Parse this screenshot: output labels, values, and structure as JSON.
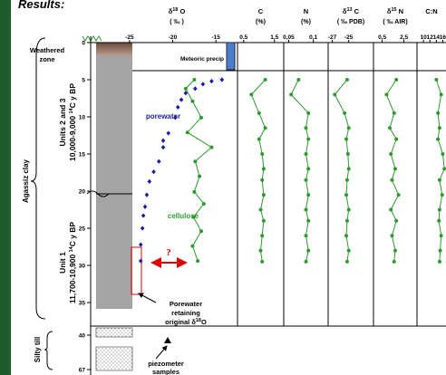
{
  "chart_data": {
    "type": "depth-profile",
    "title": "Results:",
    "depth_ticks": [
      0,
      5,
      10,
      15,
      20,
      25,
      30,
      35,
      40,
      67
    ],
    "sample_depths": [
      5,
      7,
      9.5,
      11.5,
      13,
      15,
      17,
      18.5,
      20.5,
      22.5,
      24,
      26,
      28,
      29.5
    ],
    "panels": [
      {
        "header": [
          {
            "text": "δ"
          },
          {
            "text": "18",
            "sup": true
          },
          {
            "text": " O"
          }
        ],
        "unit": "( ‰ )",
        "xlim": [
          -29.5,
          -12.5
        ],
        "xticks": [
          -25,
          -20,
          -15
        ],
        "series": [
          {
            "name": "porewater",
            "color": "#1c1c9c",
            "marker": "diamond",
            "line": false,
            "depths": [
              5,
              5.2,
              5.6,
              6.2,
              6.8,
              7.7,
              8.7,
              10.1,
              12.2,
              13.2,
              14.1,
              16,
              17.4,
              18.7,
              20.5,
              22.1,
              23.3,
              25,
              27.2,
              29.4
            ],
            "values": [
              -14.3,
              -15.5,
              -16.5,
              -17.4,
              -18.5,
              -19,
              -19.4,
              -19.7,
              -20.5,
              -21.1,
              -21.1,
              -21.6,
              -22.2,
              -22.7,
              -23,
              -23.2,
              -23.4,
              -23.5,
              -23.7,
              -23.7
            ]
          },
          {
            "name": "cellulose",
            "color": "#2e9a2e",
            "marker": "circle",
            "line": true,
            "depths": [
              5,
              6.2,
              7.9,
              10.1,
              12.1,
              14.1,
              16,
              18,
              20.1,
              21.7,
              23.5,
              25.4,
              27.4,
              29.4
            ],
            "values": [
              -17.5,
              -18.5,
              -17.7,
              -16.7,
              -18.3,
              -15.5,
              -17.4,
              -16.9,
              -17.5,
              -16.4,
              -17.6,
              -16.7,
              -17.7,
              -17.1
            ]
          }
        ]
      },
      {
        "header": [
          {
            "text": "C"
          }
        ],
        "unit": "(%)",
        "xlim": [
          0.3,
          1.8
        ],
        "xticks": [
          {
            "value": 0.5,
            "label": "0.5"
          },
          {
            "value": 1.5,
            "label": "1,5"
          }
        ],
        "series": [
          {
            "color": "#2e9a2e",
            "marker": "circle",
            "line": true,
            "values": [
              1.2,
              0.75,
              1.0,
              1.2,
              1.0,
              1.1,
              1.15,
              1.1,
              1.15,
              1.05,
              1.15,
              1.1,
              1.05,
              1.1
            ]
          }
        ]
      },
      {
        "header": [
          {
            "text": "N"
          }
        ],
        "unit": "(%)",
        "xlim": [
          0.04,
          0.13
        ],
        "xticks": [
          {
            "value": 0.05,
            "label": "0,05"
          },
          {
            "value": 0.1,
            "label": "0,1"
          }
        ],
        "series": [
          {
            "color": "#2e9a2e",
            "marker": "circle",
            "line": true,
            "values": [
              0.07,
              0.055,
              0.09,
              0.085,
              0.09,
              0.085,
              0.09,
              0.085,
              0.09,
              0.085,
              0.09,
              0.085,
              0.09,
              0.085
            ]
          }
        ]
      },
      {
        "header": [
          {
            "text": "δ"
          },
          {
            "text": "13",
            "sup": true
          },
          {
            "text": " C"
          }
        ],
        "unit": "( ‰ PDB)",
        "xlim": [
          -27.5,
          -22
        ],
        "xticks": [
          -27,
          -25
        ],
        "series": [
          {
            "color": "#2e9a2e",
            "marker": "circle",
            "line": true,
            "values": [
              -25.2,
              -26.7,
              -25.5,
              -25.0,
              -25.3,
              -25.1,
              -25.0,
              -25.2,
              -25.3,
              -25.0,
              -25.2,
              -25.3,
              -25.0,
              -25.2
            ]
          }
        ]
      },
      {
        "header": [
          {
            "text": "δ"
          },
          {
            "text": "15",
            "sup": true
          },
          {
            "text": " N"
          }
        ],
        "unit": "( ‰ AIR)",
        "xlim": [
          -0.3,
          3.7
        ],
        "xticks": [
          {
            "value": 0.5,
            "label": "0,5"
          },
          {
            "value": 2.5,
            "label": "2,5"
          }
        ],
        "series": [
          {
            "color": "#2e9a2e",
            "marker": "circle",
            "line": true,
            "values": [
              1.8,
              0.9,
              1.6,
              1.2,
              1.8,
              1.3,
              1.7,
              1.4,
              2.0,
              1.3,
              1.8,
              1.4,
              1.7,
              1.6
            ]
          }
        ]
      },
      {
        "header": [
          {
            "text": "C:N"
          }
        ],
        "xlim": [
          8,
          17
        ],
        "xticks": [
          10,
          12,
          14,
          16
        ],
        "series": [
          {
            "color": "#2e9a2e",
            "marker": "circle",
            "line": true,
            "values": [
              14,
              15.5,
              14.5,
              15,
              14.5,
              16,
              16.5,
              15,
              15.8,
              15,
              14.8,
              15.5,
              15.2,
              15
            ]
          }
        ]
      }
    ],
    "meteoric_label": "Meteoric precip",
    "question": "?",
    "weathered": [
      "Weathered",
      "zone"
    ],
    "agassiz": "Agassiz clay",
    "units23": [
      [
        {
          "text": "Units 2 and 3"
        }
      ],
      [
        {
          "text": "10,000-9,000 "
        },
        {
          "text": "14",
          "sup": true
        },
        {
          "text": "C y BP"
        }
      ]
    ],
    "unit1": [
      [
        {
          "text": "Unit 1"
        }
      ],
      [
        {
          "text": "11,700-10,900 "
        },
        {
          "text": "14",
          "sup": true
        },
        {
          "text": "C y BP"
        }
      ]
    ],
    "till": "Silty till",
    "retaining": [
      [
        {
          "text": "Porewater"
        }
      ],
      [
        {
          "text": "retaining"
        }
      ],
      [
        {
          "text": "original δ"
        },
        {
          "text": "18",
          "sup": true
        },
        {
          "text": "O"
        }
      ]
    ],
    "piezometer": [
      "piezometer",
      "samples"
    ]
  }
}
